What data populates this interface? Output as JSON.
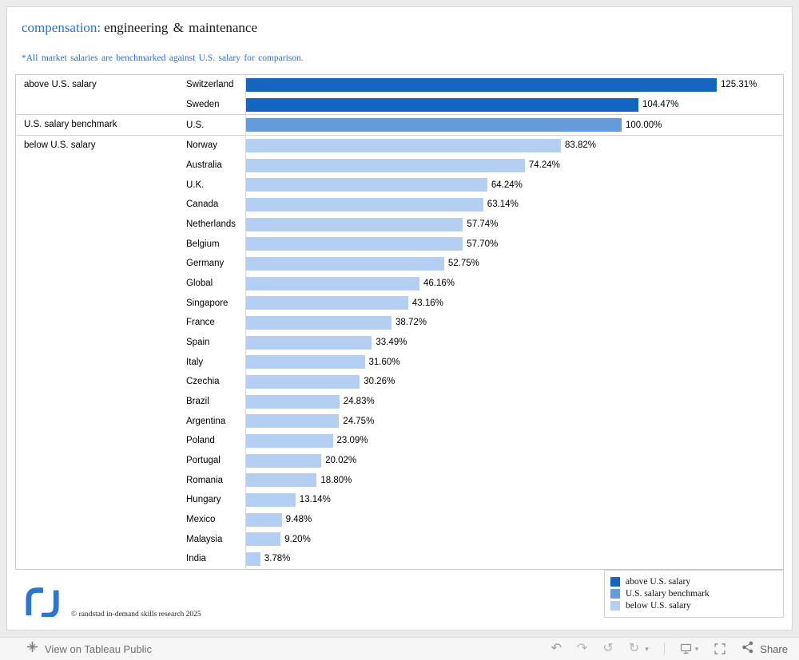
{
  "header": {
    "title_prefix": "compensation:",
    "title_main": "engineering & maintenance",
    "subtitle": "*All market salaries are benchmarked against U.S. salary for comparison."
  },
  "colors": {
    "above": "#1565c0",
    "benchmark": "#669bdb",
    "below": "#b5cff2",
    "accent_text": "#2b6fd4",
    "brand_blue": "#2b74d8"
  },
  "chart_data": {
    "type": "bar",
    "orientation": "horizontal",
    "value_unit": "%",
    "title": "compensation: engineering & maintenance",
    "note": "*All market salaries are benchmarked against U.S. salary for comparison.",
    "x_range": [
      0,
      125.31
    ],
    "groups": [
      {
        "label": "above U.S. salary",
        "color_key": "above",
        "rows": [
          {
            "country": "Switzerland",
            "value": 125.31,
            "display": "125.31%"
          },
          {
            "country": "Sweden",
            "value": 104.47,
            "display": "104.47%"
          }
        ]
      },
      {
        "label": "U.S. salary benchmark",
        "color_key": "benchmark",
        "rows": [
          {
            "country": "U.S.",
            "value": 100.0,
            "display": "100.00%"
          }
        ]
      },
      {
        "label": "below U.S. salary",
        "color_key": "below",
        "rows": [
          {
            "country": "Norway",
            "value": 83.82,
            "display": "83.82%"
          },
          {
            "country": "Australia",
            "value": 74.24,
            "display": "74.24%"
          },
          {
            "country": "U.K.",
            "value": 64.24,
            "display": "64.24%"
          },
          {
            "country": "Canada",
            "value": 63.14,
            "display": "63.14%"
          },
          {
            "country": "Netherlands",
            "value": 57.74,
            "display": "57.74%"
          },
          {
            "country": "Belgium",
            "value": 57.7,
            "display": "57.70%"
          },
          {
            "country": "Germany",
            "value": 52.75,
            "display": "52.75%"
          },
          {
            "country": "Global",
            "value": 46.16,
            "display": "46.16%"
          },
          {
            "country": "Singapore",
            "value": 43.16,
            "display": "43.16%"
          },
          {
            "country": "France",
            "value": 38.72,
            "display": "38.72%"
          },
          {
            "country": "Spain",
            "value": 33.49,
            "display": "33.49%"
          },
          {
            "country": "Italy",
            "value": 31.6,
            "display": "31.60%"
          },
          {
            "country": "Czechia",
            "value": 30.26,
            "display": "30.26%"
          },
          {
            "country": "Brazil",
            "value": 24.83,
            "display": "24.83%"
          },
          {
            "country": "Argentina",
            "value": 24.75,
            "display": "24.75%"
          },
          {
            "country": "Poland",
            "value": 23.09,
            "display": "23.09%"
          },
          {
            "country": "Portugal",
            "value": 20.02,
            "display": "20.02%"
          },
          {
            "country": "Romania",
            "value": 18.8,
            "display": "18.80%"
          },
          {
            "country": "Hungary",
            "value": 13.14,
            "display": "13.14%"
          },
          {
            "country": "Mexico",
            "value": 9.48,
            "display": "9.48%"
          },
          {
            "country": "Malaysia",
            "value": 9.2,
            "display": "9.20%"
          },
          {
            "country": "India",
            "value": 3.78,
            "display": "3.78%"
          }
        ]
      }
    ]
  },
  "legend": {
    "items": [
      {
        "label": "above U.S. salary",
        "color_key": "above"
      },
      {
        "label": "U.S. salary benchmark",
        "color_key": "benchmark"
      },
      {
        "label": "below U.S. salary",
        "color_key": "below"
      }
    ]
  },
  "footer": {
    "copyright": "© randstad in-demand skills research 2025"
  },
  "toolbar": {
    "view_label": "View on Tableau Public",
    "share_label": "Share"
  }
}
